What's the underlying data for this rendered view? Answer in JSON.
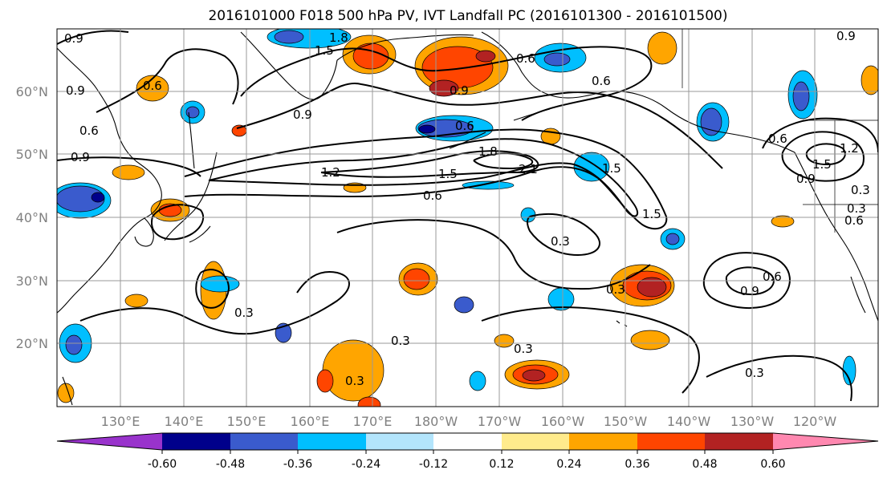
{
  "title": "2016101000 F018 500 hPa PV, IVT Landfall PC (2016101300 - 2016101500)",
  "lat_labels": [
    "60°N",
    "50°N",
    "40°N",
    "30°N",
    "20°N"
  ],
  "lon_labels": [
    "130°E",
    "140°E",
    "150°E",
    "160°E",
    "170°E",
    "180°W",
    "170°W",
    "160°W",
    "150°W",
    "140°W",
    "130°W",
    "120°W"
  ],
  "contour_labels": [
    "0.9",
    "1.8",
    "1.5",
    "0.6",
    "0.9",
    "0.9",
    "0.6",
    "0.6",
    "0.9",
    "0.6",
    "0.6",
    "0.9",
    "0.6",
    "0.9",
    "1.2",
    "0.6",
    "1.5",
    "1.8",
    "2.1",
    "1.5",
    "1.5",
    "0.3",
    "0.3",
    "0.3",
    "0.9",
    "0.6",
    "0.3",
    "0.6",
    "0.3",
    "0.3",
    "0.3",
    "0.3",
    "1.2",
    "1.5",
    "0.9",
    "0.3"
  ],
  "colorbar": {
    "colors": [
      "#9933cc",
      "#00008b",
      "#3a5bcd",
      "#00bfff",
      "#b3e5fc",
      "#ffffff",
      "#ffeb8c",
      "#ffa500",
      "#ff4500",
      "#b22222",
      "#ff88b0"
    ],
    "tick_labels": [
      "-0.60",
      "-0.48",
      "-0.36",
      "-0.24",
      "-0.12",
      "0.12",
      "0.24",
      "0.36",
      "0.48",
      "0.60"
    ]
  },
  "colors": {
    "gridline": "#999999",
    "contour": "#000000",
    "positive_strong": "#b22222",
    "positive_mid": "#ff4500",
    "positive_weak": "#ffa500",
    "negative_strong": "#00008b",
    "negative_mid": "#3a5bcd",
    "negative_weak": "#00bfff"
  }
}
